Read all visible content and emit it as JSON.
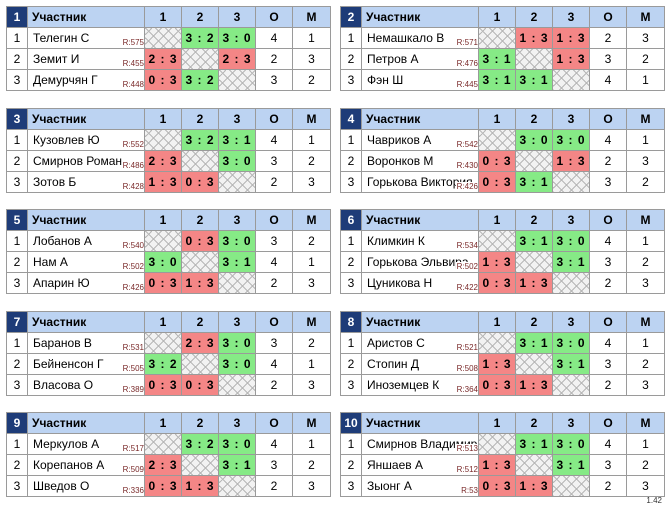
{
  "header": {
    "participant": "Участник",
    "c1": "1",
    "c2": "2",
    "c3": "3",
    "o": "О",
    "m": "М"
  },
  "groups": [
    {
      "num": "1",
      "rows": [
        {
          "n": "1",
          "name": "Телегин С",
          "rating": "R:575",
          "s": [
            "",
            "3 : 2",
            "3 : 0"
          ],
          "o": "4",
          "m": "1"
        },
        {
          "n": "2",
          "name": "Земит И",
          "rating": "R:455",
          "s": [
            "2 : 3",
            "",
            "2 : 3"
          ],
          "o": "2",
          "m": "3"
        },
        {
          "n": "3",
          "name": "Демурчян Г",
          "rating": "R:448",
          "s": [
            "0 : 3",
            "3 : 2",
            ""
          ],
          "o": "3",
          "m": "2"
        }
      ]
    },
    {
      "num": "2",
      "rows": [
        {
          "n": "1",
          "name": "Немашкало В",
          "rating": "R:571",
          "s": [
            "",
            "1 : 3",
            "1 : 3"
          ],
          "o": "2",
          "m": "3"
        },
        {
          "n": "2",
          "name": "Петров А",
          "rating": "R:476",
          "s": [
            "3 : 1",
            "",
            "1 : 3"
          ],
          "o": "3",
          "m": "2"
        },
        {
          "n": "3",
          "name": "Фэн Ш",
          "rating": "R:445",
          "s": [
            "3 : 1",
            "3 : 1",
            ""
          ],
          "o": "4",
          "m": "1"
        }
      ]
    },
    {
      "num": "3",
      "rows": [
        {
          "n": "1",
          "name": "Кузовлев Ю",
          "rating": "R:552",
          "s": [
            "",
            "3 : 2",
            "3 : 1"
          ],
          "o": "4",
          "m": "1"
        },
        {
          "n": "2",
          "name": "Смирнов Роман",
          "rating": "R:486",
          "s": [
            "2 : 3",
            "",
            "3 : 0"
          ],
          "o": "3",
          "m": "2"
        },
        {
          "n": "3",
          "name": "Зотов Б",
          "rating": "R:428",
          "s": [
            "1 : 3",
            "0 : 3",
            ""
          ],
          "o": "2",
          "m": "3"
        }
      ]
    },
    {
      "num": "4",
      "rows": [
        {
          "n": "1",
          "name": "Чавриков А",
          "rating": "R:542",
          "s": [
            "",
            "3 : 0",
            "3 : 0"
          ],
          "o": "4",
          "m": "1"
        },
        {
          "n": "2",
          "name": "Воронков М",
          "rating": "R:430",
          "s": [
            "0 : 3",
            "",
            "1 : 3"
          ],
          "o": "2",
          "m": "3"
        },
        {
          "n": "3",
          "name": "Горькова Виктория",
          "rating": "R:426",
          "s": [
            "0 : 3",
            "3 : 1",
            ""
          ],
          "o": "3",
          "m": "2"
        }
      ]
    },
    {
      "num": "5",
      "rows": [
        {
          "n": "1",
          "name": "Лобанов А",
          "rating": "R:540",
          "s": [
            "",
            "0 : 3",
            "3 : 0"
          ],
          "o": "3",
          "m": "2"
        },
        {
          "n": "2",
          "name": "Нам А",
          "rating": "R:502",
          "s": [
            "3 : 0",
            "",
            "3 : 1"
          ],
          "o": "4",
          "m": "1"
        },
        {
          "n": "3",
          "name": "Апарин Ю",
          "rating": "R:426",
          "s": [
            "0 : 3",
            "1 : 3",
            ""
          ],
          "o": "2",
          "m": "3"
        }
      ]
    },
    {
      "num": "6",
      "rows": [
        {
          "n": "1",
          "name": "Климкин К",
          "rating": "R:534",
          "s": [
            "",
            "3 : 1",
            "3 : 0"
          ],
          "o": "4",
          "m": "1"
        },
        {
          "n": "2",
          "name": "Горькова Эльвира",
          "rating": "R:502",
          "s": [
            "1 : 3",
            "",
            "3 : 1"
          ],
          "o": "3",
          "m": "2"
        },
        {
          "n": "3",
          "name": "Цуникова Н",
          "rating": "R:422",
          "s": [
            "0 : 3",
            "1 : 3",
            ""
          ],
          "o": "2",
          "m": "3"
        }
      ]
    },
    {
      "num": "7",
      "rows": [
        {
          "n": "1",
          "name": "Баранов В",
          "rating": "R:531",
          "s": [
            "",
            "2 : 3",
            "3 : 0"
          ],
          "o": "3",
          "m": "2"
        },
        {
          "n": "2",
          "name": "Бейненсон Г",
          "rating": "R:505",
          "s": [
            "3 : 2",
            "",
            "3 : 0"
          ],
          "o": "4",
          "m": "1"
        },
        {
          "n": "3",
          "name": "Власова О",
          "rating": "R:389",
          "s": [
            "0 : 3",
            "0 : 3",
            ""
          ],
          "o": "2",
          "m": "3"
        }
      ]
    },
    {
      "num": "8",
      "rows": [
        {
          "n": "1",
          "name": "Аристов С",
          "rating": "R:521",
          "s": [
            "",
            "3 : 1",
            "3 : 0"
          ],
          "o": "4",
          "m": "1"
        },
        {
          "n": "2",
          "name": "Стопин Д",
          "rating": "R:508",
          "s": [
            "1 : 3",
            "",
            "3 : 1"
          ],
          "o": "3",
          "m": "2"
        },
        {
          "n": "3",
          "name": "Иноземцев К",
          "rating": "R:364",
          "s": [
            "0 : 3",
            "1 : 3",
            ""
          ],
          "o": "2",
          "m": "3"
        }
      ]
    },
    {
      "num": "9",
      "rows": [
        {
          "n": "1",
          "name": "Меркулов А",
          "rating": "R:517",
          "s": [
            "",
            "3 : 2",
            "3 : 0"
          ],
          "o": "4",
          "m": "1"
        },
        {
          "n": "2",
          "name": "Корепанов А",
          "rating": "R:509",
          "s": [
            "2 : 3",
            "",
            "3 : 1"
          ],
          "o": "3",
          "m": "2"
        },
        {
          "n": "3",
          "name": "Шведов О",
          "rating": "R:336",
          "s": [
            "0 : 3",
            "1 : 3",
            ""
          ],
          "o": "2",
          "m": "3"
        }
      ]
    },
    {
      "num": "10",
      "rows": [
        {
          "n": "1",
          "name": "Смирнов Владимир",
          "rating": "R:513",
          "s": [
            "",
            "3 : 1",
            "3 : 0"
          ],
          "o": "4",
          "m": "1"
        },
        {
          "n": "2",
          "name": "Яншаев А",
          "rating": "R:512",
          "s": [
            "1 : 3",
            "",
            "3 : 1"
          ],
          "o": "3",
          "m": "2"
        },
        {
          "n": "3",
          "name": "Зыонг А",
          "rating": "R:53",
          "s": [
            "0 : 3",
            "1 : 3",
            ""
          ],
          "o": "2",
          "m": "3"
        }
      ]
    }
  ],
  "colors": {
    "header_bg": "#bcd3f2",
    "group_num_bg": "#1e3c78",
    "win": "#86ea86",
    "loss": "#f48686"
  },
  "version": "1.42"
}
